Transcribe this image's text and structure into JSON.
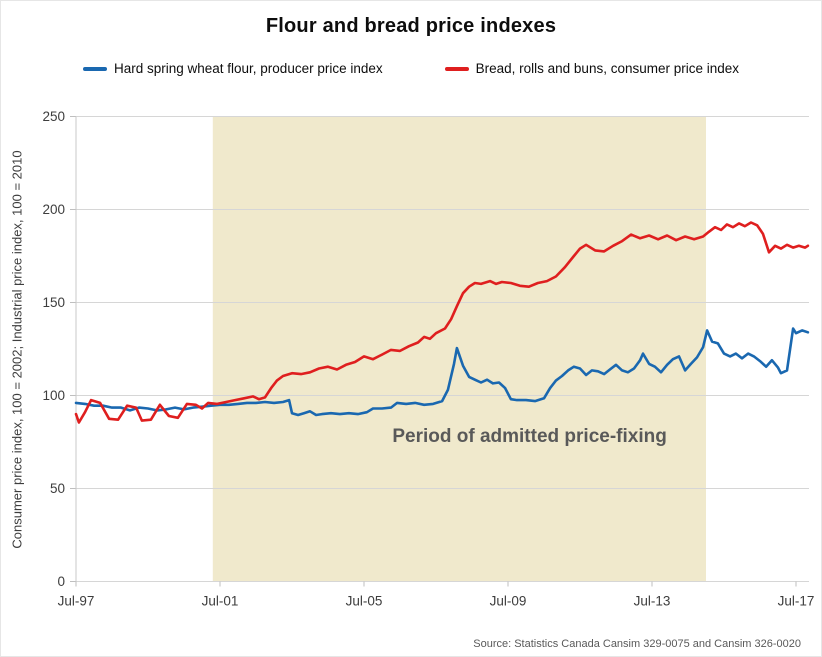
{
  "source": "Source: Statistics Canada Cansim 329-0075 and Cansim 326-0020",
  "chart_data": {
    "type": "line",
    "title": "Flour and bread price indexes",
    "xlabel": "",
    "ylabel": "Consumer price index, 100 = 2002; Industrial price index, 100 = 2010",
    "xlim": [
      1997.5,
      2017.9
    ],
    "ylim": [
      0,
      250
    ],
    "grid": "horizontal",
    "legend_position": "top",
    "yticks": [
      0,
      50,
      100,
      150,
      200,
      250
    ],
    "xticks": [
      {
        "label": "Jul-97",
        "x": 1997.5
      },
      {
        "label": "Jul-01",
        "x": 2001.5
      },
      {
        "label": "Jul-05",
        "x": 2005.5
      },
      {
        "label": "Jul-09",
        "x": 2009.5
      },
      {
        "label": "Jul-13",
        "x": 2013.5
      },
      {
        "label": "Jul-17",
        "x": 2017.5
      }
    ],
    "shaded_region": {
      "label": "Period of admitted price-fixing",
      "x0": 2001.3,
      "x1": 2015.0,
      "color": "#F0E9CC"
    },
    "annotation": {
      "text": "Period of admitted price-fixing",
      "x": 2010.1,
      "y": 75
    },
    "series": [
      {
        "name": "Hard spring wheat flour, producer price index",
        "color": "#1A68B0",
        "points": [
          [
            1997.5,
            96
          ],
          [
            1997.75,
            95.5
          ],
          [
            1998,
            94.5
          ],
          [
            1998.25,
            94.5
          ],
          [
            1998.5,
            93.5
          ],
          [
            1998.75,
            93.5
          ],
          [
            1999,
            92
          ],
          [
            1999.25,
            93.5
          ],
          [
            1999.5,
            93
          ],
          [
            1999.75,
            92
          ],
          [
            2000,
            92.5
          ],
          [
            2000.25,
            93.5
          ],
          [
            2000.5,
            92.5
          ],
          [
            2000.75,
            93.5
          ],
          [
            2001,
            94
          ],
          [
            2001.25,
            94.5
          ],
          [
            2001.5,
            95
          ],
          [
            2001.75,
            95
          ],
          [
            2002,
            95.5
          ],
          [
            2002.25,
            96
          ],
          [
            2002.5,
            96
          ],
          [
            2002.75,
            96.5
          ],
          [
            2003,
            96
          ],
          [
            2003.25,
            96.5
          ],
          [
            2003.42,
            97.5
          ],
          [
            2003.5,
            90.5
          ],
          [
            2003.67,
            89.5
          ],
          [
            2003.83,
            90.5
          ],
          [
            2004,
            91.5
          ],
          [
            2004.17,
            89.5
          ],
          [
            2004.33,
            90
          ],
          [
            2004.58,
            90.5
          ],
          [
            2004.83,
            90
          ],
          [
            2005.08,
            90.5
          ],
          [
            2005.33,
            90
          ],
          [
            2005.58,
            91
          ],
          [
            2005.75,
            93
          ],
          [
            2006,
            93
          ],
          [
            2006.25,
            93.5
          ],
          [
            2006.42,
            96
          ],
          [
            2006.67,
            95.5
          ],
          [
            2006.92,
            96
          ],
          [
            2007.17,
            95
          ],
          [
            2007.42,
            95.5
          ],
          [
            2007.67,
            97
          ],
          [
            2007.83,
            103
          ],
          [
            2008,
            117
          ],
          [
            2008.08,
            125.5
          ],
          [
            2008.25,
            116
          ],
          [
            2008.42,
            110
          ],
          [
            2008.58,
            108.5
          ],
          [
            2008.75,
            107
          ],
          [
            2008.92,
            108.5
          ],
          [
            2009.08,
            106.5
          ],
          [
            2009.25,
            107
          ],
          [
            2009.42,
            104
          ],
          [
            2009.58,
            98
          ],
          [
            2009.75,
            97.5
          ],
          [
            2010,
            97.5
          ],
          [
            2010.25,
            97
          ],
          [
            2010.5,
            98.5
          ],
          [
            2010.67,
            104
          ],
          [
            2010.83,
            108
          ],
          [
            2011,
            110.5
          ],
          [
            2011.17,
            113.5
          ],
          [
            2011.33,
            115.5
          ],
          [
            2011.5,
            114.5
          ],
          [
            2011.67,
            111
          ],
          [
            2011.83,
            113.5
          ],
          [
            2012,
            113
          ],
          [
            2012.17,
            111.5
          ],
          [
            2012.33,
            114
          ],
          [
            2012.5,
            116.5
          ],
          [
            2012.67,
            113.5
          ],
          [
            2012.83,
            112.5
          ],
          [
            2013,
            114.5
          ],
          [
            2013.17,
            119
          ],
          [
            2013.25,
            122.5
          ],
          [
            2013.42,
            117
          ],
          [
            2013.58,
            115.5
          ],
          [
            2013.75,
            112.5
          ],
          [
            2013.92,
            116.5
          ],
          [
            2014.08,
            119.5
          ],
          [
            2014.25,
            121
          ],
          [
            2014.42,
            113.5
          ],
          [
            2014.58,
            117
          ],
          [
            2014.75,
            120.5
          ],
          [
            2014.92,
            126
          ],
          [
            2015.03,
            135
          ],
          [
            2015.17,
            129
          ],
          [
            2015.33,
            128
          ],
          [
            2015.5,
            122.5
          ],
          [
            2015.67,
            121
          ],
          [
            2015.83,
            122.5
          ],
          [
            2016,
            120
          ],
          [
            2016.17,
            122.5
          ],
          [
            2016.33,
            121
          ],
          [
            2016.5,
            118.5
          ],
          [
            2016.67,
            115.5
          ],
          [
            2016.83,
            119
          ],
          [
            2017,
            115
          ],
          [
            2017.08,
            112
          ],
          [
            2017.25,
            113.5
          ],
          [
            2017.42,
            136
          ],
          [
            2017.5,
            133.5
          ],
          [
            2017.67,
            135
          ],
          [
            2017.83,
            134
          ]
        ]
      },
      {
        "name": "Bread, rolls and buns, consumer price index",
        "color": "#DF1F1F",
        "points": [
          [
            1997.5,
            90
          ],
          [
            1997.58,
            85.5
          ],
          [
            1997.75,
            91
          ],
          [
            1997.92,
            97.5
          ],
          [
            1998.17,
            96
          ],
          [
            1998.42,
            87.5
          ],
          [
            1998.67,
            87
          ],
          [
            1998.92,
            94.5
          ],
          [
            1999.17,
            93.5
          ],
          [
            1999.33,
            86.5
          ],
          [
            1999.58,
            87
          ],
          [
            1999.83,
            95
          ],
          [
            2000.08,
            89
          ],
          [
            2000.33,
            88
          ],
          [
            2000.58,
            95.5
          ],
          [
            2000.83,
            95
          ],
          [
            2001,
            93
          ],
          [
            2001.17,
            96
          ],
          [
            2001.42,
            95.5
          ],
          [
            2001.67,
            96.5
          ],
          [
            2001.92,
            97.5
          ],
          [
            2002.17,
            98.5
          ],
          [
            2002.42,
            99.5
          ],
          [
            2002.58,
            98
          ],
          [
            2002.75,
            99
          ],
          [
            2002.92,
            104
          ],
          [
            2003.08,
            108
          ],
          [
            2003.25,
            110.5
          ],
          [
            2003.5,
            112
          ],
          [
            2003.75,
            111.5
          ],
          [
            2004,
            112.5
          ],
          [
            2004.25,
            114.5
          ],
          [
            2004.5,
            115.5
          ],
          [
            2004.75,
            114
          ],
          [
            2005,
            116.5
          ],
          [
            2005.25,
            118
          ],
          [
            2005.5,
            121
          ],
          [
            2005.75,
            119.5
          ],
          [
            2006,
            122
          ],
          [
            2006.25,
            124.5
          ],
          [
            2006.5,
            124
          ],
          [
            2006.75,
            126.5
          ],
          [
            2007,
            128.5
          ],
          [
            2007.17,
            131.5
          ],
          [
            2007.33,
            130.5
          ],
          [
            2007.5,
            133.5
          ],
          [
            2007.75,
            136
          ],
          [
            2007.92,
            141
          ],
          [
            2008.08,
            148
          ],
          [
            2008.25,
            155
          ],
          [
            2008.42,
            158.5
          ],
          [
            2008.58,
            160.5
          ],
          [
            2008.75,
            160
          ],
          [
            2009,
            161.5
          ],
          [
            2009.17,
            160
          ],
          [
            2009.33,
            161
          ],
          [
            2009.58,
            160.5
          ],
          [
            2009.83,
            159
          ],
          [
            2010.08,
            158.5
          ],
          [
            2010.33,
            160.5
          ],
          [
            2010.58,
            161.5
          ],
          [
            2010.83,
            164
          ],
          [
            2011.08,
            169
          ],
          [
            2011.33,
            175
          ],
          [
            2011.5,
            179
          ],
          [
            2011.67,
            181
          ],
          [
            2011.92,
            178
          ],
          [
            2012.17,
            177.5
          ],
          [
            2012.42,
            180.5
          ],
          [
            2012.67,
            183
          ],
          [
            2012.92,
            186.5
          ],
          [
            2013.17,
            184.5
          ],
          [
            2013.42,
            186
          ],
          [
            2013.67,
            184
          ],
          [
            2013.92,
            186
          ],
          [
            2014.17,
            183.5
          ],
          [
            2014.42,
            185.5
          ],
          [
            2014.67,
            184
          ],
          [
            2014.92,
            185.5
          ],
          [
            2015.08,
            188
          ],
          [
            2015.25,
            190.5
          ],
          [
            2015.42,
            189
          ],
          [
            2015.58,
            192
          ],
          [
            2015.75,
            190.5
          ],
          [
            2015.92,
            192.5
          ],
          [
            2016.08,
            191
          ],
          [
            2016.25,
            193
          ],
          [
            2016.42,
            191.5
          ],
          [
            2016.58,
            187
          ],
          [
            2016.75,
            177
          ],
          [
            2016.92,
            180.5
          ],
          [
            2017.08,
            179
          ],
          [
            2017.25,
            181
          ],
          [
            2017.42,
            179.5
          ],
          [
            2017.58,
            180.5
          ],
          [
            2017.75,
            179.5
          ],
          [
            2017.83,
            180.5
          ]
        ]
      }
    ]
  }
}
